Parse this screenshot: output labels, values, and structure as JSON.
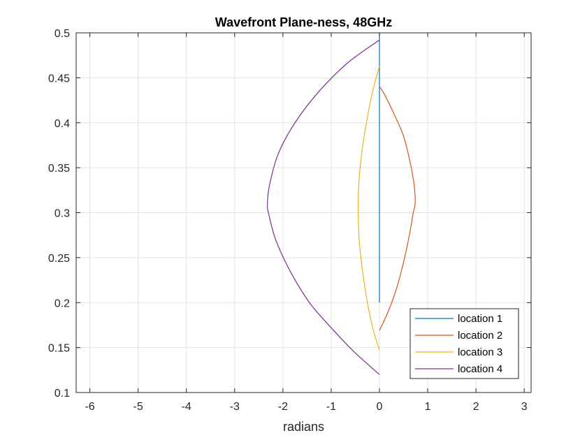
{
  "chart_data": {
    "type": "line",
    "title": "Wavefront Plane-ness, 48GHz",
    "xlabel": "radians",
    "ylabel": "",
    "xlim": [
      -6.2832,
      3.1416
    ],
    "ylim": [
      0.1,
      0.5
    ],
    "xticks": [
      -6,
      -5,
      -4,
      -3,
      -2,
      -1,
      0,
      1,
      2,
      3
    ],
    "xtick_labels": [
      "-6",
      "-5",
      "-4",
      "-3",
      "-2",
      "-1",
      "0",
      "1",
      "2",
      "3"
    ],
    "yticks": [
      0.1,
      0.15,
      0.2,
      0.25,
      0.3,
      0.35,
      0.4,
      0.45,
      0.5
    ],
    "ytick_labels": [
      "0.1",
      "0.15",
      "0.2",
      "0.25",
      "0.3",
      "0.35",
      "0.4",
      "0.45",
      "0.5"
    ],
    "grid": true,
    "legend_position": "bottom-right",
    "series": [
      {
        "name": "location 1",
        "color": "#0072BD",
        "points": [
          [
            0,
            0.2
          ],
          [
            0,
            0.25
          ],
          [
            0,
            0.3
          ],
          [
            0,
            0.35
          ],
          [
            0,
            0.4
          ],
          [
            0,
            0.45
          ],
          [
            0,
            0.5
          ]
        ]
      },
      {
        "name": "location 2",
        "color": "#D95319",
        "points": [
          [
            0,
            0.169
          ],
          [
            0.18,
            0.19
          ],
          [
            0.35,
            0.215
          ],
          [
            0.5,
            0.245
          ],
          [
            0.62,
            0.275
          ],
          [
            0.7,
            0.3
          ],
          [
            0.74,
            0.31
          ],
          [
            0.72,
            0.33
          ],
          [
            0.64,
            0.355
          ],
          [
            0.5,
            0.385
          ],
          [
            0.3,
            0.41
          ],
          [
            0.1,
            0.432
          ],
          [
            0,
            0.44
          ]
        ]
      },
      {
        "name": "location 3",
        "color": "#EDB120",
        "points": [
          [
            0,
            0.147
          ],
          [
            -0.13,
            0.17
          ],
          [
            -0.25,
            0.2
          ],
          [
            -0.35,
            0.235
          ],
          [
            -0.42,
            0.27
          ],
          [
            -0.44,
            0.3
          ],
          [
            -0.43,
            0.33
          ],
          [
            -0.37,
            0.365
          ],
          [
            -0.27,
            0.4
          ],
          [
            -0.14,
            0.435
          ],
          [
            0,
            0.463
          ]
        ]
      },
      {
        "name": "location 4",
        "color": "#7E2F8E",
        "points": [
          [
            0,
            0.12
          ],
          [
            -0.52,
            0.145
          ],
          [
            -1.0,
            0.172
          ],
          [
            -1.45,
            0.2
          ],
          [
            -1.85,
            0.235
          ],
          [
            -2.15,
            0.27
          ],
          [
            -2.3,
            0.3
          ],
          [
            -2.32,
            0.31
          ],
          [
            -2.28,
            0.33
          ],
          [
            -2.1,
            0.365
          ],
          [
            -1.75,
            0.4
          ],
          [
            -1.25,
            0.435
          ],
          [
            -0.65,
            0.467
          ],
          [
            0,
            0.492
          ]
        ]
      }
    ]
  }
}
